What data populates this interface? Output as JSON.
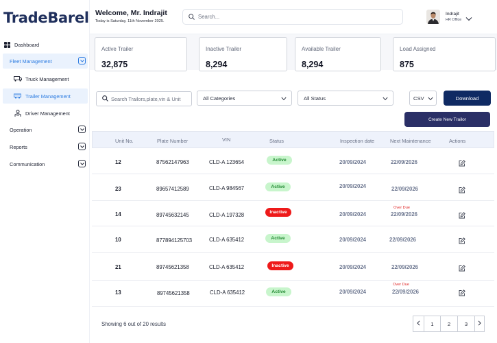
{
  "brand": {
    "logo": "TradeBarel"
  },
  "sidebar": {
    "items": [
      {
        "label": "Dashboard",
        "icon": "grid-icon"
      },
      {
        "label": "Fleet Management",
        "icon": "",
        "expandable": true,
        "active": true
      },
      {
        "label": "Truck Management",
        "icon": "truck-icon"
      },
      {
        "label": "Trailer Management",
        "icon": "trailer-icon",
        "active": true
      },
      {
        "label": "Driver Management",
        "icon": "driver-icon"
      },
      {
        "label": "Operation",
        "expandable": true
      },
      {
        "label": "Reports",
        "expandable": true
      },
      {
        "label": "Communication",
        "expandable": true
      }
    ]
  },
  "header": {
    "welcome": "Welcome, Mr. Indrajit",
    "today": "Today is Saturday, 11th November 2025.",
    "search_placeholder": "Search...",
    "user_name": "Indrajit",
    "user_role": "HR Office"
  },
  "stats": [
    {
      "label": "Active Trailer",
      "value": "32,875"
    },
    {
      "label": "Inactive Trailer",
      "value": "8,294"
    },
    {
      "label": "Available Trailer",
      "value": "8,294"
    },
    {
      "label": "Load Assigned",
      "value": "875"
    }
  ],
  "filters": {
    "search_placeholder": "Search Trailors,plate,vin & Unit",
    "category": "All Categories",
    "status": "All Status",
    "format": "CSV",
    "download_label": "Download",
    "create_label": "Create New Trailor"
  },
  "table": {
    "headers": [
      "Unit  No.",
      "Plate Number",
      "VIN",
      "Status",
      "Inspection date",
      "Next Maintenance",
      "Actions"
    ],
    "rows": [
      {
        "unit": "12",
        "plate": "87562147963",
        "vin": "CLD-A 123654",
        "status": "Active",
        "inspection": "20/09/2024",
        "maintenance": "22/09/2026",
        "overdue": ""
      },
      {
        "unit": "23",
        "plate": "89657412589",
        "vin": "CLD-A 984567",
        "status": "Active",
        "inspection": "20/09/2024",
        "maintenance": "22/09/2026",
        "overdue": ""
      },
      {
        "unit": "14",
        "plate": "89745632145",
        "vin": "CLD-A 197328",
        "status": "Inactive",
        "inspection": "20/09/2024",
        "maintenance": "22/09/2026",
        "overdue": "Over Due"
      },
      {
        "unit": "10",
        "plate": "877894125703",
        "vin": "CLD-A 635412",
        "status": "Active",
        "inspection": "20/09/2024",
        "maintenance": "22/09/2026",
        "overdue": ""
      },
      {
        "unit": "21",
        "plate": "89745621358",
        "vin": "CLD-A 635412",
        "status": "Inactive",
        "inspection": "20/09/2024",
        "maintenance": "22/09/2026",
        "overdue": ""
      },
      {
        "unit": "13",
        "plate": "89745621358",
        "vin": "CLD-A 635412",
        "status": "Active",
        "inspection": "20/09/2024",
        "maintenance": "22/09/2026",
        "overdue": "Over Due"
      }
    ]
  },
  "footer": {
    "showing": "Showing 6 out of 20 results",
    "pages": [
      "1",
      "2",
      "3"
    ]
  },
  "colors": {
    "brand": "#1f2f5c",
    "accent": "#2f7de1",
    "download": "#0f2a63",
    "create": "#2a2f66",
    "active_badge": "#c8f5cc",
    "inactive_badge": "#ee1a1a",
    "overdue": "#e02828"
  }
}
